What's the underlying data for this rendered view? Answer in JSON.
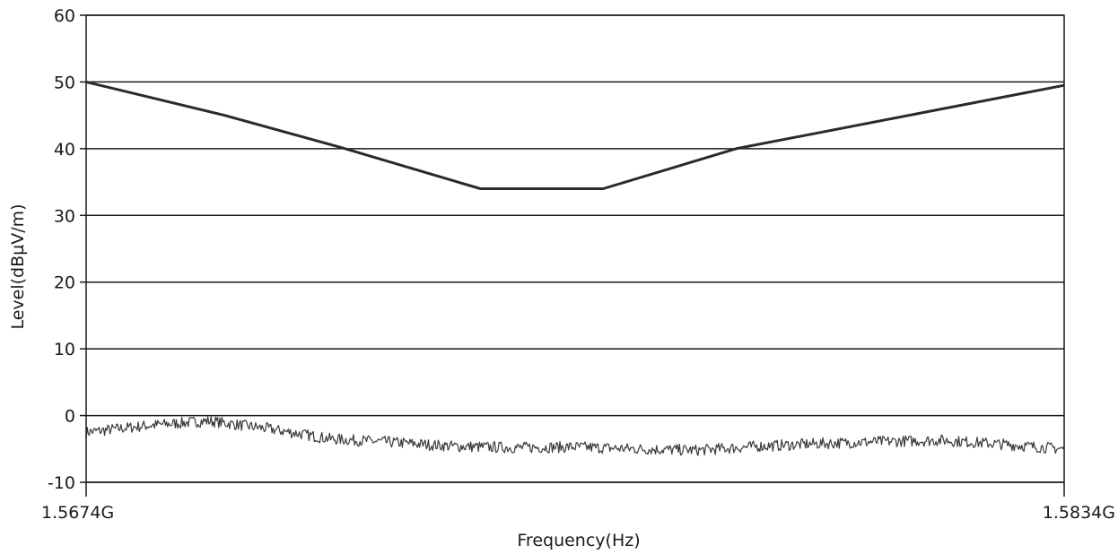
{
  "chart_data": {
    "type": "line",
    "title": "",
    "xlabel": "Frequency(Hz)",
    "ylabel": "Level(dBµV/m)",
    "xlim": [
      1.5674,
      1.5834
    ],
    "x_unit_suffix": "G",
    "ylim": [
      -10,
      60
    ],
    "yticks": [
      60,
      50,
      40,
      30,
      20,
      10,
      0,
      -10
    ],
    "xticks": [
      {
        "value": 1.5674,
        "label": "1.5674G"
      },
      {
        "value": 1.5834,
        "label": "1.5834G"
      }
    ],
    "grid": {
      "horizontal": true,
      "vertical": false
    },
    "colors": {
      "limit_line": "#2a2a2a",
      "measurement": "#3a3a3a",
      "grid": "#1a1a1a",
      "background": "#ffffff"
    },
    "series": [
      {
        "role": "limit",
        "x": [
          1.5674,
          1.56966,
          1.57164,
          1.57385,
          1.57586,
          1.57803,
          1.5834
        ],
        "y": [
          50,
          45,
          40,
          34,
          34,
          40,
          49.5
        ]
      },
      {
        "role": "measurement",
        "x": [
          1.5674,
          1.5684,
          1.5694,
          1.5704,
          1.5714,
          1.5724,
          1.5734,
          1.5744,
          1.5754,
          1.5764,
          1.5774,
          1.5784,
          1.5794,
          1.5804,
          1.5814,
          1.5824,
          1.5834
        ],
        "y": [
          -2.5,
          -1.5,
          -0.8,
          -2,
          -3.5,
          -4,
          -4.6,
          -4.8,
          -4.7,
          -5,
          -5.2,
          -4.6,
          -4.2,
          -3.9,
          -3.7,
          -4.3,
          -5
        ]
      }
    ]
  }
}
